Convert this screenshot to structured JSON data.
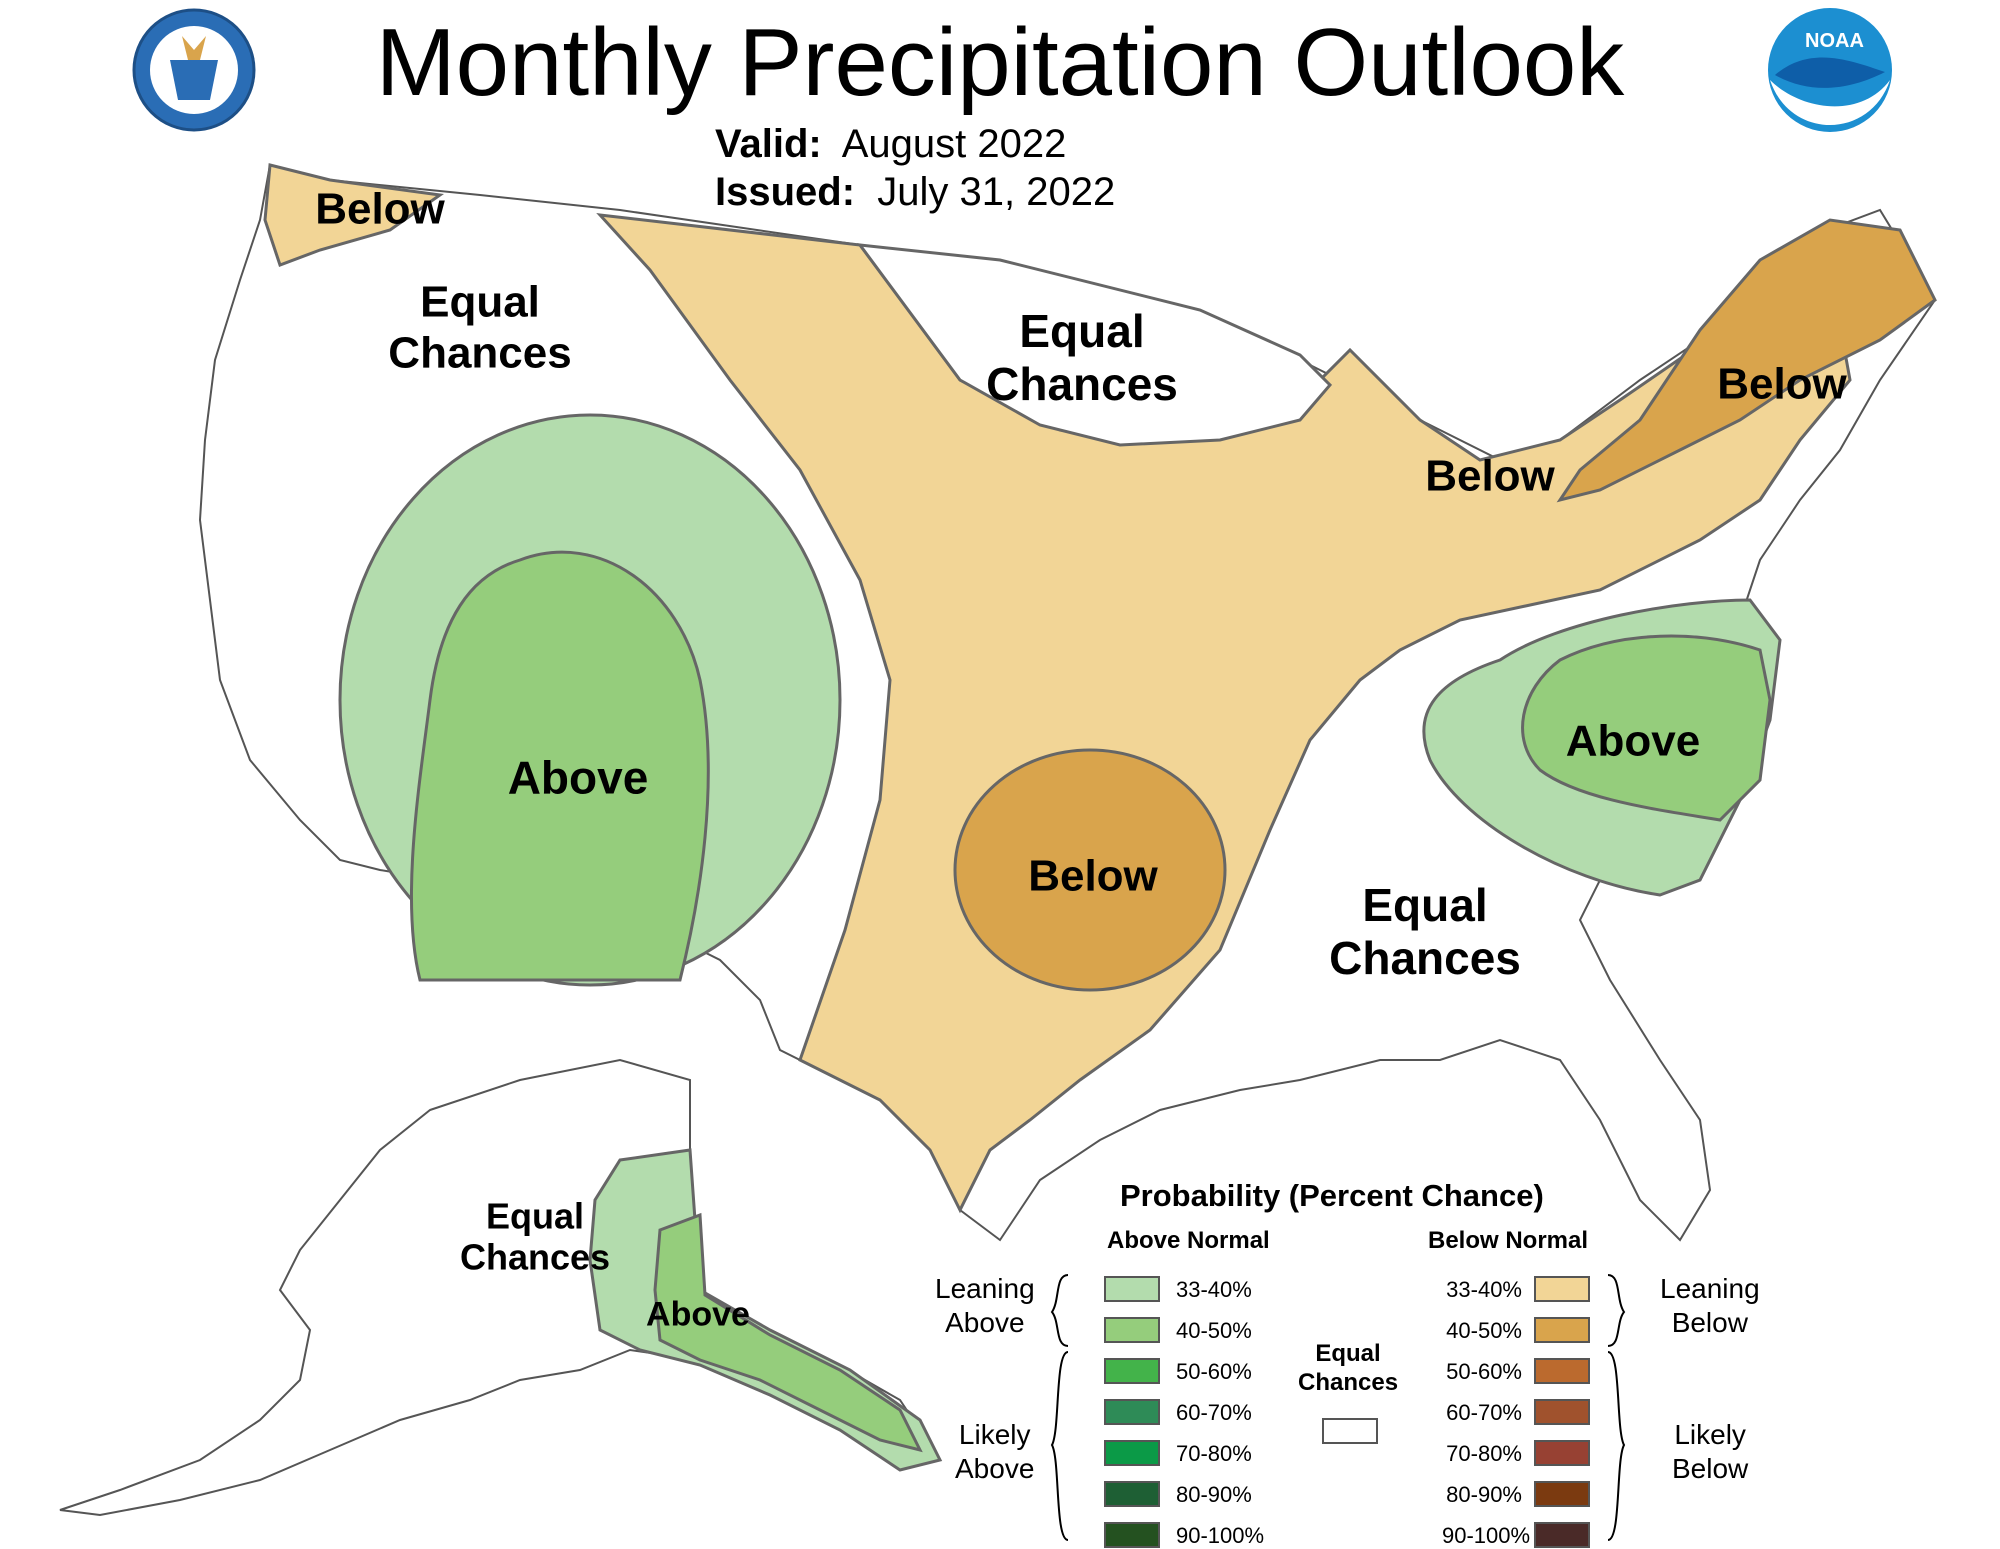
{
  "title": "Monthly Precipitation Outlook",
  "valid": {
    "label": "Valid:",
    "value": "August 2022"
  },
  "issued": {
    "label": "Issued:",
    "value": "July 31, 2022"
  },
  "logos": {
    "left": "department-of-commerce-seal",
    "right": "noaa-logo",
    "noaa_text": "NOAA"
  },
  "regions": {
    "pnw_below": "Below",
    "west_ec": [
      "Equal",
      "Chances"
    ],
    "sw_above": "Above",
    "north_ec": [
      "Equal",
      "Chances"
    ],
    "mi_below": "Below",
    "ne_below": "Below",
    "mid_atlantic_above": "Above",
    "ok_below": "Below",
    "se_ec": [
      "Equal",
      "Chances"
    ],
    "ak_ec": [
      "Equal",
      "Chances"
    ],
    "ak_above": "Above"
  },
  "legend": {
    "title": "Probability (Percent Chance)",
    "above_header": "Above Normal",
    "below_header": "Below Normal",
    "equal_chances": [
      "Equal",
      "Chances"
    ],
    "leaning_above": [
      "Leaning",
      "Above"
    ],
    "likely_above": [
      "Likely",
      "Above"
    ],
    "leaning_below": [
      "Leaning",
      "Below"
    ],
    "likely_below": [
      "Likely",
      "Below"
    ],
    "above_bins": [
      {
        "label": "33-40%",
        "color": "#b3dcad"
      },
      {
        "label": "40-50%",
        "color": "#95cd7c"
      },
      {
        "label": "50-60%",
        "color": "#43b34a"
      },
      {
        "label": "60-70%",
        "color": "#2e8b57"
      },
      {
        "label": "70-80%",
        "color": "#0b9a47"
      },
      {
        "label": "80-90%",
        "color": "#1e5f34"
      },
      {
        "label": "90-100%",
        "color": "#245120"
      }
    ],
    "below_bins": [
      {
        "label": "33-40%",
        "color": "#f2d596"
      },
      {
        "label": "40-50%",
        "color": "#d9a44c"
      },
      {
        "label": "50-60%",
        "color": "#bb6a2e"
      },
      {
        "label": "60-70%",
        "color": "#a0522d"
      },
      {
        "label": "70-80%",
        "color": "#974133"
      },
      {
        "label": "80-90%",
        "color": "#7b3a10"
      },
      {
        "label": "90-100%",
        "color": "#4a2a28"
      }
    ],
    "equal_color": "#ffffff"
  }
}
